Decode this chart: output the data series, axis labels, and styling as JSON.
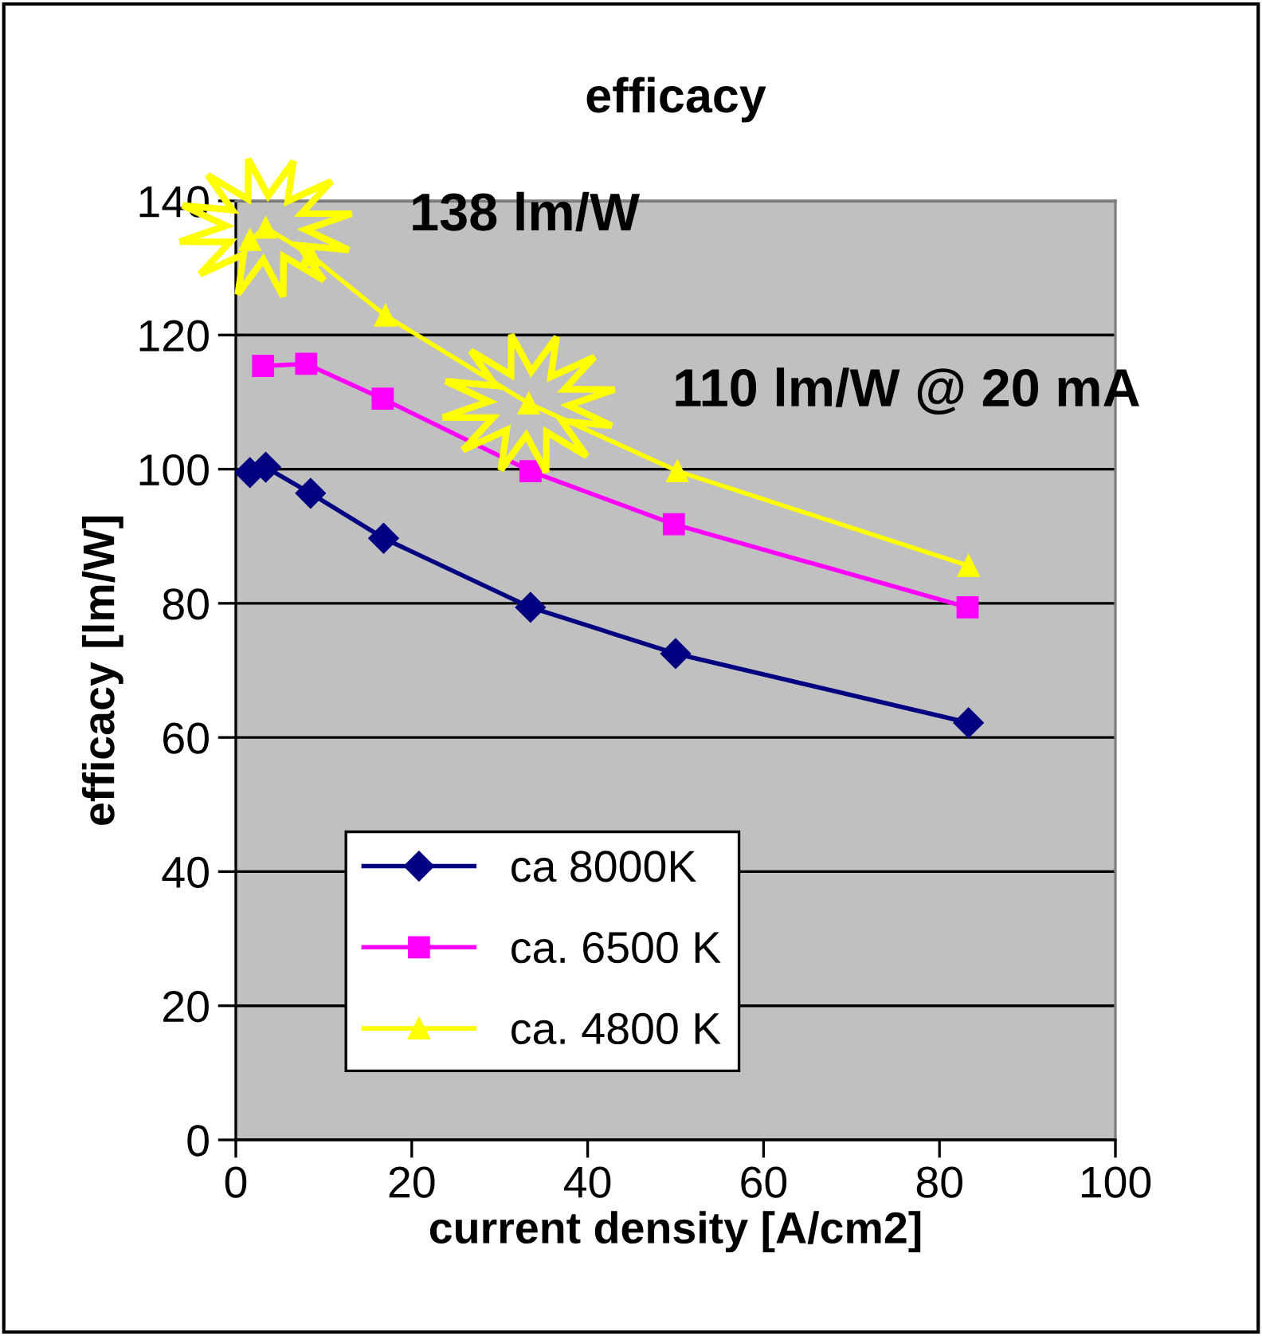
{
  "chart_data": {
    "type": "line",
    "title": "efficacy",
    "xlabel": "current density [A/cm2]",
    "ylabel": "efficacy [lm/W]",
    "xlim": [
      0,
      100
    ],
    "xticks": [
      0,
      20,
      40,
      60,
      80,
      100
    ],
    "ylim": [
      0,
      140
    ],
    "yticks": [
      0,
      20,
      40,
      60,
      80,
      100,
      120,
      140
    ],
    "grid": "y",
    "legend": "bottom left",
    "series": [
      {
        "name": "ca 8000K",
        "color": "#000080",
        "marker": "diamond",
        "x": [
          1.6,
          3.4,
          8.5,
          16.8,
          33.5,
          50,
          83.3
        ],
        "values": [
          99.5,
          100.3,
          96.4,
          89.7,
          79.4,
          72.5,
          62.2
        ]
      },
      {
        "name": "ca. 6500 K",
        "color": "#ff00ff",
        "marker": "square",
        "x": [
          3.1,
          8,
          16.7,
          33.5,
          49.8,
          83.2
        ],
        "values": [
          115.4,
          115.7,
          110.5,
          99.7,
          91.8,
          79.4
        ]
      },
      {
        "name": "ca. 4800 K",
        "color": "#ffff00",
        "marker": "triangle",
        "x": [
          1.6,
          3.4,
          8.5,
          17,
          33.3,
          50.2,
          83.3
        ],
        "values": [
          134.2,
          136,
          131.9,
          122.9,
          109.8,
          99.7,
          85.6
        ]
      }
    ],
    "annotations": [
      {
        "text": "138 lm/W",
        "x": 3.4,
        "y": 136
      },
      {
        "text": "110 lm/W @ 20 mA",
        "x": 33.3,
        "y": 109.8
      }
    ]
  }
}
